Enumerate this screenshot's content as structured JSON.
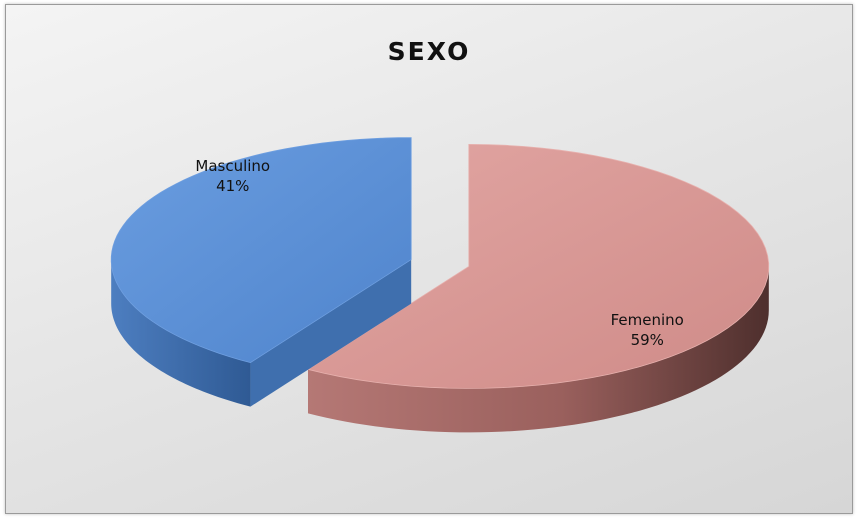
{
  "chart_data": {
    "type": "pie",
    "title": "SEXO",
    "slices": [
      {
        "label": "Masculino",
        "value": 41,
        "value_text": "41%",
        "color": "#5b8fd6",
        "side_color": "#3a6aaa"
      },
      {
        "label": "Femenino",
        "value": 59,
        "value_text": "59%",
        "color": "#d99693",
        "side_color": "#8a5350"
      }
    ],
    "style": "3d-exploded",
    "legend": "none"
  }
}
